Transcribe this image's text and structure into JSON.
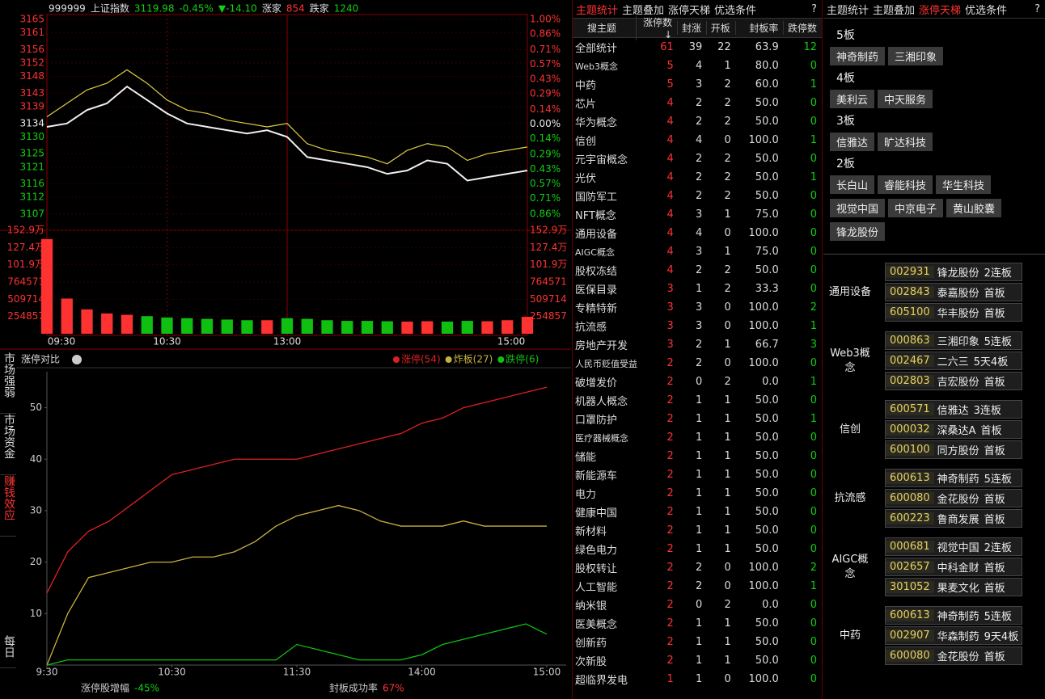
{
  "quote": {
    "code": "999999",
    "name": "上证指数",
    "price": "3119.98",
    "change_pct": "-0.45%",
    "change": "▼-14.10",
    "up_label": "涨家",
    "up_count": "854",
    "down_label": "跌家",
    "down_count": "1240"
  },
  "index_chart": {
    "type": "line",
    "xlim": [
      0,
      240
    ],
    "x": [
      0,
      10,
      20,
      30,
      40,
      50,
      60,
      70,
      80,
      90,
      100,
      110,
      120,
      130,
      140,
      150,
      160,
      170,
      180,
      190,
      200,
      210,
      220,
      230,
      240
    ],
    "xticks": [
      {
        "value": 0,
        "label": "09:30"
      },
      {
        "value": 60,
        "label": "10:30"
      },
      {
        "value": 120,
        "label": "13:00"
      },
      {
        "value": 240,
        "label": "15:00"
      }
    ],
    "ylim": [
      3107,
      3165
    ],
    "yticks": [
      3165,
      3161,
      3156,
      3152,
      3148,
      3143,
      3139,
      3134,
      3130,
      3125,
      3121,
      3116,
      3112,
      3107
    ],
    "y2lim": [
      -0.86,
      1.0
    ],
    "y2ticks": [
      {
        "value": 1.0,
        "label": "1.00%"
      },
      {
        "value": 0.86,
        "label": "0.86%"
      },
      {
        "value": 0.71,
        "label": "0.71%"
      },
      {
        "value": 0.57,
        "label": "0.57%"
      },
      {
        "value": 0.43,
        "label": "0.43%"
      },
      {
        "value": 0.29,
        "label": "0.29%"
      },
      {
        "value": 0.14,
        "label": "0.14%"
      },
      {
        "value": 0,
        "label": "0.00%"
      },
      {
        "value": -0.14,
        "label": "0.14%"
      },
      {
        "value": -0.29,
        "label": "0.29%"
      },
      {
        "value": -0.43,
        "label": "0.43%"
      },
      {
        "value": -0.57,
        "label": "0.57%"
      },
      {
        "value": -0.71,
        "label": "0.71%"
      },
      {
        "value": -0.86,
        "label": "0.86%"
      }
    ],
    "series": [
      {
        "color": "#f0f0f0",
        "values": [
          3133,
          3134,
          3138,
          3140,
          3145,
          3141,
          3137,
          3134,
          3133,
          3132,
          3131,
          3132,
          3130,
          3124,
          3123,
          3122,
          3121,
          3119,
          3120,
          3123,
          3122,
          3117,
          3118,
          3119,
          3120
        ]
      },
      {
        "color": "#e0d040",
        "values": [
          3136,
          3140,
          3144,
          3146,
          3150,
          3146,
          3141,
          3138,
          3137,
          3135,
          3134,
          3133,
          3134,
          3128,
          3126,
          3125,
          3124,
          3122,
          3126,
          3128,
          3127,
          3123,
          3125,
          3126,
          3127
        ]
      }
    ]
  },
  "volume_chart": {
    "type": "bar",
    "ylim": [
      0,
      1529142
    ],
    "yticks": [
      254857,
      509714,
      764571,
      {
        "value": 1019428,
        "label": "101.9万"
      },
      {
        "value": 1274285,
        "label": "127.4万"
      },
      {
        "value": 1529142,
        "label": "152.9万"
      }
    ],
    "up_color": "#ff3232",
    "down_color": "#10c010",
    "values": [
      1400000,
      520000,
      360000,
      300000,
      280000,
      260000,
      240000,
      230000,
      220000,
      210000,
      200000,
      200000,
      230000,
      220000,
      200000,
      190000,
      190000,
      185000,
      180000,
      185000,
      180000,
      190000,
      185000,
      200000,
      250000
    ]
  },
  "side_tabs": [
    "市场强弱",
    "市场资金",
    "赚钱效应",
    "每日"
  ],
  "limit_chart": {
    "type": "line",
    "title": "涨停对比",
    "xlim": [
      0,
      240
    ],
    "x": [
      0,
      10,
      20,
      30,
      40,
      50,
      60,
      70,
      80,
      90,
      100,
      110,
      120,
      130,
      140,
      150,
      160,
      170,
      180,
      190,
      200,
      210,
      220,
      230,
      240
    ],
    "xticks": [
      {
        "value": 0,
        "label": "9:30"
      },
      {
        "value": 60,
        "label": "10:30"
      },
      {
        "value": 120,
        "label": "11:30"
      },
      {
        "value": 180,
        "label": "14:00"
      },
      {
        "value": 240,
        "label": "15:00"
      }
    ],
    "ylim": [
      0,
      57
    ],
    "yticks": [
      10,
      20,
      30,
      40,
      50
    ],
    "series": [
      {
        "name": "涨停(54)",
        "color": "#e02020",
        "values": [
          14,
          22,
          26,
          28,
          31,
          34,
          37,
          38,
          39,
          40,
          40,
          40,
          40,
          41,
          42,
          43,
          44,
          45,
          47,
          48,
          50,
          51,
          52,
          53,
          54
        ]
      },
      {
        "name": "炸板(27)",
        "color": "#c8b040",
        "values": [
          0,
          10,
          17,
          18,
          19,
          20,
          20,
          21,
          21,
          22,
          24,
          27,
          29,
          30,
          31,
          30,
          28,
          27,
          27,
          27,
          28,
          27,
          27,
          27,
          27
        ]
      },
      {
        "name": "跌停(6)",
        "color": "#10c010",
        "values": [
          0,
          1,
          1,
          1,
          1,
          1,
          1,
          1,
          1,
          1,
          1,
          1,
          4,
          3,
          2,
          1,
          1,
          1,
          2,
          4,
          5,
          6,
          7,
          8,
          6
        ]
      }
    ],
    "footer": [
      {
        "label": "涨停股增幅",
        "value": "-45%"
      },
      {
        "label": "封板成功率",
        "value": "67%"
      }
    ]
  },
  "theme_table": {
    "tabs": [
      "主题统计",
      "主题叠加",
      "涨停天梯",
      "优选条件",
      "?"
    ],
    "search": "搜主题",
    "columns": [
      "涨停数↓",
      "封涨",
      "开板",
      "封板率",
      "跌停数"
    ],
    "rows": [
      [
        "全部统计",
        "61",
        "39",
        "22",
        "63.9",
        "12"
      ],
      [
        "Web3概念",
        "5",
        "4",
        "1",
        "80.0",
        "0"
      ],
      [
        "中药",
        "5",
        "3",
        "2",
        "60.0",
        "1"
      ],
      [
        "芯片",
        "4",
        "2",
        "2",
        "50.0",
        "0"
      ],
      [
        "华为概念",
        "4",
        "2",
        "2",
        "50.0",
        "0"
      ],
      [
        "信创",
        "4",
        "4",
        "0",
        "100.0",
        "1"
      ],
      [
        "元宇宙概念",
        "4",
        "2",
        "2",
        "50.0",
        "0"
      ],
      [
        "光伏",
        "4",
        "2",
        "2",
        "50.0",
        "1"
      ],
      [
        "国防军工",
        "4",
        "2",
        "2",
        "50.0",
        "0"
      ],
      [
        "NFT概念",
        "4",
        "3",
        "1",
        "75.0",
        "0"
      ],
      [
        "通用设备",
        "4",
        "4",
        "0",
        "100.0",
        "0"
      ],
      [
        "AIGC概念",
        "4",
        "3",
        "1",
        "75.0",
        "0"
      ],
      [
        "股权冻结",
        "4",
        "2",
        "2",
        "50.0",
        "0"
      ],
      [
        "医保目录",
        "3",
        "1",
        "2",
        "33.3",
        "0"
      ],
      [
        "专精特新",
        "3",
        "3",
        "0",
        "100.0",
        "2"
      ],
      [
        "抗流感",
        "3",
        "3",
        "0",
        "100.0",
        "1"
      ],
      [
        "房地产开发",
        "3",
        "2",
        "1",
        "66.7",
        "3"
      ],
      [
        "人民币贬值受益",
        "2",
        "2",
        "0",
        "100.0",
        "0"
      ],
      [
        "破增发价",
        "2",
        "0",
        "2",
        "0.0",
        "1"
      ],
      [
        "机器人概念",
        "2",
        "1",
        "1",
        "50.0",
        "0"
      ],
      [
        "口罩防护",
        "2",
        "1",
        "1",
        "50.0",
        "1"
      ],
      [
        "医疗器械概念",
        "2",
        "1",
        "1",
        "50.0",
        "0"
      ],
      [
        "储能",
        "2",
        "1",
        "1",
        "50.0",
        "0"
      ],
      [
        "新能源车",
        "2",
        "1",
        "1",
        "50.0",
        "0"
      ],
      [
        "电力",
        "2",
        "1",
        "1",
        "50.0",
        "0"
      ],
      [
        "健康中国",
        "2",
        "1",
        "1",
        "50.0",
        "0"
      ],
      [
        "新材料",
        "2",
        "1",
        "1",
        "50.0",
        "0"
      ],
      [
        "绿色电力",
        "2",
        "1",
        "1",
        "50.0",
        "0"
      ],
      [
        "股权转让",
        "2",
        "2",
        "0",
        "100.0",
        "2"
      ],
      [
        "人工智能",
        "2",
        "2",
        "0",
        "100.0",
        "1"
      ],
      [
        "纳米银",
        "2",
        "0",
        "2",
        "0.0",
        "0"
      ],
      [
        "医美概念",
        "2",
        "1",
        "1",
        "50.0",
        "0"
      ],
      [
        "创新药",
        "2",
        "1",
        "1",
        "50.0",
        "0"
      ],
      [
        "次新股",
        "2",
        "1",
        "1",
        "50.0",
        "0"
      ],
      [
        "超临界发电",
        "1",
        "1",
        "0",
        "100.0",
        "0"
      ]
    ]
  },
  "ladder": {
    "tabs": [
      "主题统计",
      "主题叠加",
      "涨停天梯",
      "优选条件",
      "?"
    ],
    "levels": [
      {
        "label": "5板",
        "stocks": [
          "神奇制药",
          "三湘印象"
        ]
      },
      {
        "label": "4板",
        "stocks": [
          "美利云",
          "中天服务"
        ]
      },
      {
        "label": "3板",
        "stocks": [
          "信雅达",
          "旷达科技"
        ]
      },
      {
        "label": "2板",
        "stocks": [
          "长白山",
          "睿能科技",
          "华生科技",
          "视觉中国",
          "中京电子",
          "黄山胶囊",
          "锋龙股份"
        ]
      }
    ],
    "groups": [
      {
        "theme": "通用设备",
        "stocks": [
          {
            "code": "002931",
            "name": "锋龙股份",
            "tag": "2连板"
          },
          {
            "code": "002843",
            "name": "泰嘉股份",
            "tag": "首板"
          },
          {
            "code": "605100",
            "name": "华丰股份",
            "tag": "首板"
          }
        ]
      },
      {
        "theme": "Web3概念",
        "stocks": [
          {
            "code": "000863",
            "name": "三湘印象",
            "tag": "5连板"
          },
          {
            "code": "002467",
            "name": "二六三",
            "tag": "5天4板"
          },
          {
            "code": "002803",
            "name": "吉宏股份",
            "tag": "首板"
          }
        ]
      },
      {
        "theme": "信创",
        "stocks": [
          {
            "code": "600571",
            "name": "信雅达",
            "tag": "3连板"
          },
          {
            "code": "000032",
            "name": "深桑达A",
            "tag": "首板"
          },
          {
            "code": "600100",
            "name": "同方股份",
            "tag": "首板"
          }
        ]
      },
      {
        "theme": "抗流感",
        "stocks": [
          {
            "code": "600613",
            "name": "神奇制药",
            "tag": "5连板"
          },
          {
            "code": "600080",
            "name": "金花股份",
            "tag": "首板"
          },
          {
            "code": "600223",
            "name": "鲁商发展",
            "tag": "首板"
          }
        ]
      },
      {
        "theme": "AIGC概念",
        "stocks": [
          {
            "code": "000681",
            "name": "视觉中国",
            "tag": "2连板"
          },
          {
            "code": "002657",
            "name": "中科金财",
            "tag": "首板"
          },
          {
            "code": "301052",
            "name": "果麦文化",
            "tag": "首板"
          }
        ]
      },
      {
        "theme": "中药",
        "stocks": [
          {
            "code": "600613",
            "name": "神奇制药",
            "tag": "5连板"
          },
          {
            "code": "002907",
            "name": "华森制药",
            "tag": "9天4板"
          },
          {
            "code": "600080",
            "name": "金花股份",
            "tag": "首板"
          }
        ]
      }
    ]
  }
}
